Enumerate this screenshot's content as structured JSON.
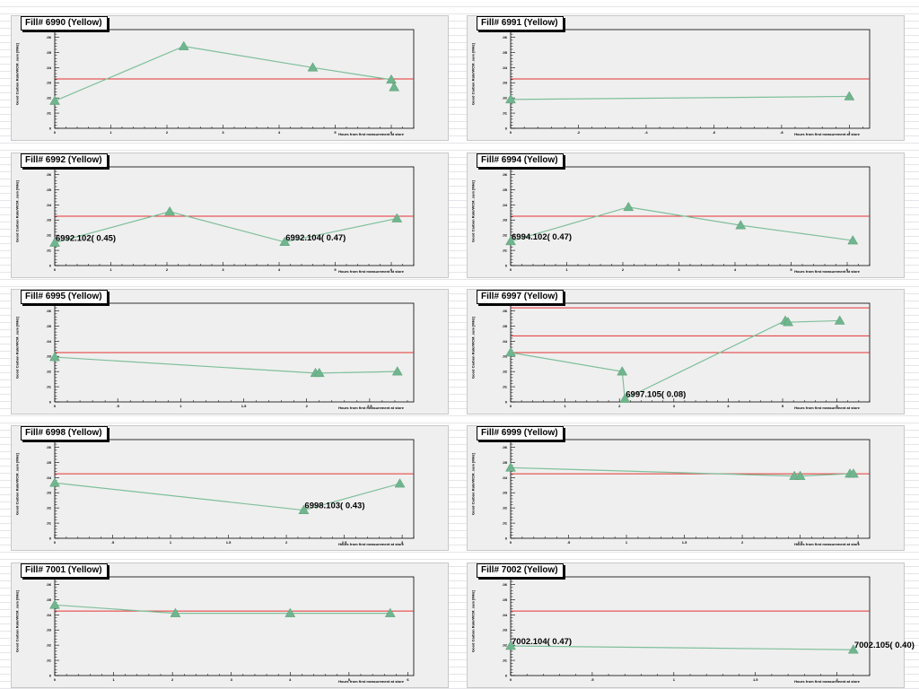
{
  "chart_data": [
    {
      "type": "line",
      "title": "Fill# 6990 (Yellow)",
      "ylabel": "Good Carbon Rate/WCM_sum [MHz]",
      "xlabel": "Hours from first measurement at store",
      "xlim": [
        0,
        6.4
      ],
      "xticks": [
        0,
        1,
        2,
        3,
        4,
        5,
        6
      ],
      "ylim": [
        0,
        0.065
      ],
      "yticks": [
        0,
        0.01,
        0.02,
        0.03,
        0.04,
        0.05,
        0.06
      ],
      "hlines": [
        0.0325
      ],
      "series": [
        {
          "x": [
            0,
            2.3,
            4.6,
            6.0,
            6.05
          ],
          "y": [
            0.018,
            0.054,
            0.04,
            0.032,
            0.027
          ]
        }
      ],
      "annotations": []
    },
    {
      "type": "line",
      "title": "Fill# 6991 (Yellow)",
      "ylabel": "Good Carbon Rate/WCM_sum [MHz]",
      "xlabel": "Hours from first measurement at store",
      "xlim": [
        0,
        1.06
      ],
      "xticks": [
        0,
        0.2,
        0.4,
        0.6,
        0.8,
        1
      ],
      "ylim": [
        0,
        0.065
      ],
      "yticks": [
        0,
        0.01,
        0.02,
        0.03,
        0.04,
        0.05,
        0.06
      ],
      "hlines": [
        0.0325
      ],
      "series": [
        {
          "x": [
            0,
            1.0
          ],
          "y": [
            0.019,
            0.021
          ]
        }
      ],
      "annotations": []
    },
    {
      "type": "line",
      "title": "Fill# 6992 (Yellow)",
      "ylabel": "Good Carbon Rate/WCM_sum [MHz]",
      "xlabel": "Hours from first measurement at store",
      "xlim": [
        0,
        6.4
      ],
      "xticks": [
        0,
        1,
        2,
        3,
        4,
        5,
        6
      ],
      "ylim": [
        0,
        0.065
      ],
      "yticks": [
        0,
        0.01,
        0.02,
        0.03,
        0.04,
        0.05,
        0.06
      ],
      "hlines": [
        0.0325
      ],
      "series": [
        {
          "x": [
            0,
            2.05,
            4.1,
            6.1
          ],
          "y": [
            0.015,
            0.0355,
            0.0155,
            0.031
          ]
        }
      ],
      "annotations": [
        {
          "x": 0,
          "y": 0.015,
          "text": "6992.102( 0.45)"
        },
        {
          "x": 4.1,
          "y": 0.0155,
          "text": "6992.104( 0.47)"
        }
      ]
    },
    {
      "type": "line",
      "title": "Fill# 6994 (Yellow)",
      "ylabel": "Good Carbon Rate/WCM_sum [MHz]",
      "xlabel": "Hours from first measurement at store",
      "xlim": [
        0,
        6.4
      ],
      "xticks": [
        0,
        1,
        2,
        3,
        4,
        5,
        6
      ],
      "ylim": [
        0,
        0.065
      ],
      "yticks": [
        0,
        0.01,
        0.02,
        0.03,
        0.04,
        0.05,
        0.06
      ],
      "hlines": [
        0.0325
      ],
      "series": [
        {
          "x": [
            0,
            2.1,
            4.1,
            6.1
          ],
          "y": [
            0.016,
            0.0385,
            0.0265,
            0.0165
          ]
        }
      ],
      "annotations": [
        {
          "x": 0,
          "y": 0.016,
          "text": "6994.102( 0.47)"
        }
      ]
    },
    {
      "type": "line",
      "title": "Fill# 6995 (Yellow)",
      "ylabel": "Good Carbon Rate/WCM_sum [MHz]",
      "xlabel": "Hours from first measurement at store",
      "xlim": [
        0,
        2.85
      ],
      "xticks": [
        0,
        0.5,
        1,
        1.5,
        2,
        2.5
      ],
      "ylim": [
        0,
        0.065
      ],
      "yticks": [
        0,
        0.01,
        0.02,
        0.03,
        0.04,
        0.05,
        0.06
      ],
      "hlines": [
        0.0325
      ],
      "series": [
        {
          "x": [
            0,
            2.07,
            2.1,
            2.72
          ],
          "y": [
            0.0295,
            0.019,
            0.019,
            0.02
          ]
        }
      ],
      "annotations": []
    },
    {
      "type": "line",
      "title": "Fill# 6997 (Yellow)",
      "ylabel": "Good Carbon Rate/WCM_sum [MHz]",
      "xlabel": "Hours from first measurement at store",
      "xlim": [
        0,
        6.6
      ],
      "xticks": [
        0,
        1,
        2,
        3,
        4,
        5,
        6
      ],
      "ylim": [
        0,
        0.065
      ],
      "yticks": [
        0,
        0.01,
        0.02,
        0.03,
        0.04,
        0.05,
        0.06
      ],
      "hlines": [
        0.062,
        0.0435,
        0.0325
      ],
      "series": [
        {
          "x": [
            0,
            2.05,
            2.1,
            5.05,
            5.1,
            6.05
          ],
          "y": [
            0.0325,
            0.02,
            0.002,
            0.0535,
            0.0525,
            0.0535
          ]
        }
      ],
      "annotations": [
        {
          "x": 2.1,
          "y": 0.002,
          "text": "6997.105( 0.08)"
        }
      ]
    },
    {
      "type": "line",
      "title": "Fill# 6998 (Yellow)",
      "ylabel": "Good Carbon Rate/WCM_sum [MHz]",
      "xlabel": "Hours from first measurement at store",
      "xlim": [
        0,
        3.1
      ],
      "xticks": [
        0,
        0.5,
        1,
        1.5,
        2,
        2.5,
        3
      ],
      "ylim": [
        0,
        0.065
      ],
      "yticks": [
        0,
        0.01,
        0.02,
        0.03,
        0.04,
        0.05,
        0.06
      ],
      "hlines": [
        0.0425
      ],
      "series": [
        {
          "x": [
            0,
            2.15,
            2.98
          ],
          "y": [
            0.0365,
            0.0185,
            0.036
          ]
        }
      ],
      "annotations": [
        {
          "x": 2.15,
          "y": 0.0185,
          "text": "6998.103( 0.43)"
        }
      ]
    },
    {
      "type": "line",
      "title": "Fill# 6999 (Yellow)",
      "ylabel": "Good Carbon Rate/WCM_sum [MHz]",
      "xlabel": "Hours from first measurement at store",
      "xlim": [
        0,
        3.1
      ],
      "xticks": [
        0,
        0.5,
        1,
        1.5,
        2,
        2.5,
        3
      ],
      "ylim": [
        0,
        0.065
      ],
      "yticks": [
        0,
        0.01,
        0.02,
        0.03,
        0.04,
        0.05,
        0.06
      ],
      "hlines": [
        0.0425
      ],
      "series": [
        {
          "x": [
            0,
            2.45,
            2.5,
            2.93,
            2.96
          ],
          "y": [
            0.0465,
            0.041,
            0.041,
            0.0425,
            0.0425
          ]
        }
      ],
      "annotations": []
    },
    {
      "type": "line",
      "title": "Fill# 7001 (Yellow)",
      "ylabel": "Good Carbon Rate/WCM_sum [MHz]",
      "xlabel": "Hours from first measurement at store",
      "xlim": [
        0,
        6.1
      ],
      "xticks": [
        0,
        1,
        2,
        3,
        4,
        5,
        6
      ],
      "ylim": [
        0,
        0.065
      ],
      "yticks": [
        0,
        0.01,
        0.02,
        0.03,
        0.04,
        0.05,
        0.06
      ],
      "hlines": [
        0.0425
      ],
      "series": [
        {
          "x": [
            0,
            2.05,
            4.0,
            5.7
          ],
          "y": [
            0.0465,
            0.041,
            0.041,
            0.041
          ]
        }
      ],
      "annotations": []
    },
    {
      "type": "line",
      "title": "Fill# 7002 (Yellow)",
      "ylabel": "Good Carbon Rate/WCM_sum [MHz]",
      "xlabel": "Hours from first measurement at store",
      "xlim": [
        0,
        2.2
      ],
      "xticks": [
        0,
        0.5,
        1,
        1.5,
        2
      ],
      "ylim": [
        0,
        0.065
      ],
      "yticks": [
        0,
        0.01,
        0.02,
        0.03,
        0.04,
        0.05,
        0.06
      ],
      "hlines": [
        0.0425
      ],
      "series": [
        {
          "x": [
            0,
            2.1
          ],
          "y": [
            0.0195,
            0.017
          ]
        }
      ],
      "annotations": [
        {
          "x": 0,
          "y": 0.0195,
          "text": "7002.104( 0.47)"
        },
        {
          "x": 2.1,
          "y": 0.017,
          "text": "7002.105( 0.40)"
        }
      ]
    }
  ],
  "colors": {
    "line": "#7fbf9b",
    "marker": "#6fb58d",
    "hline": "#e53030",
    "frame": "#000000"
  }
}
